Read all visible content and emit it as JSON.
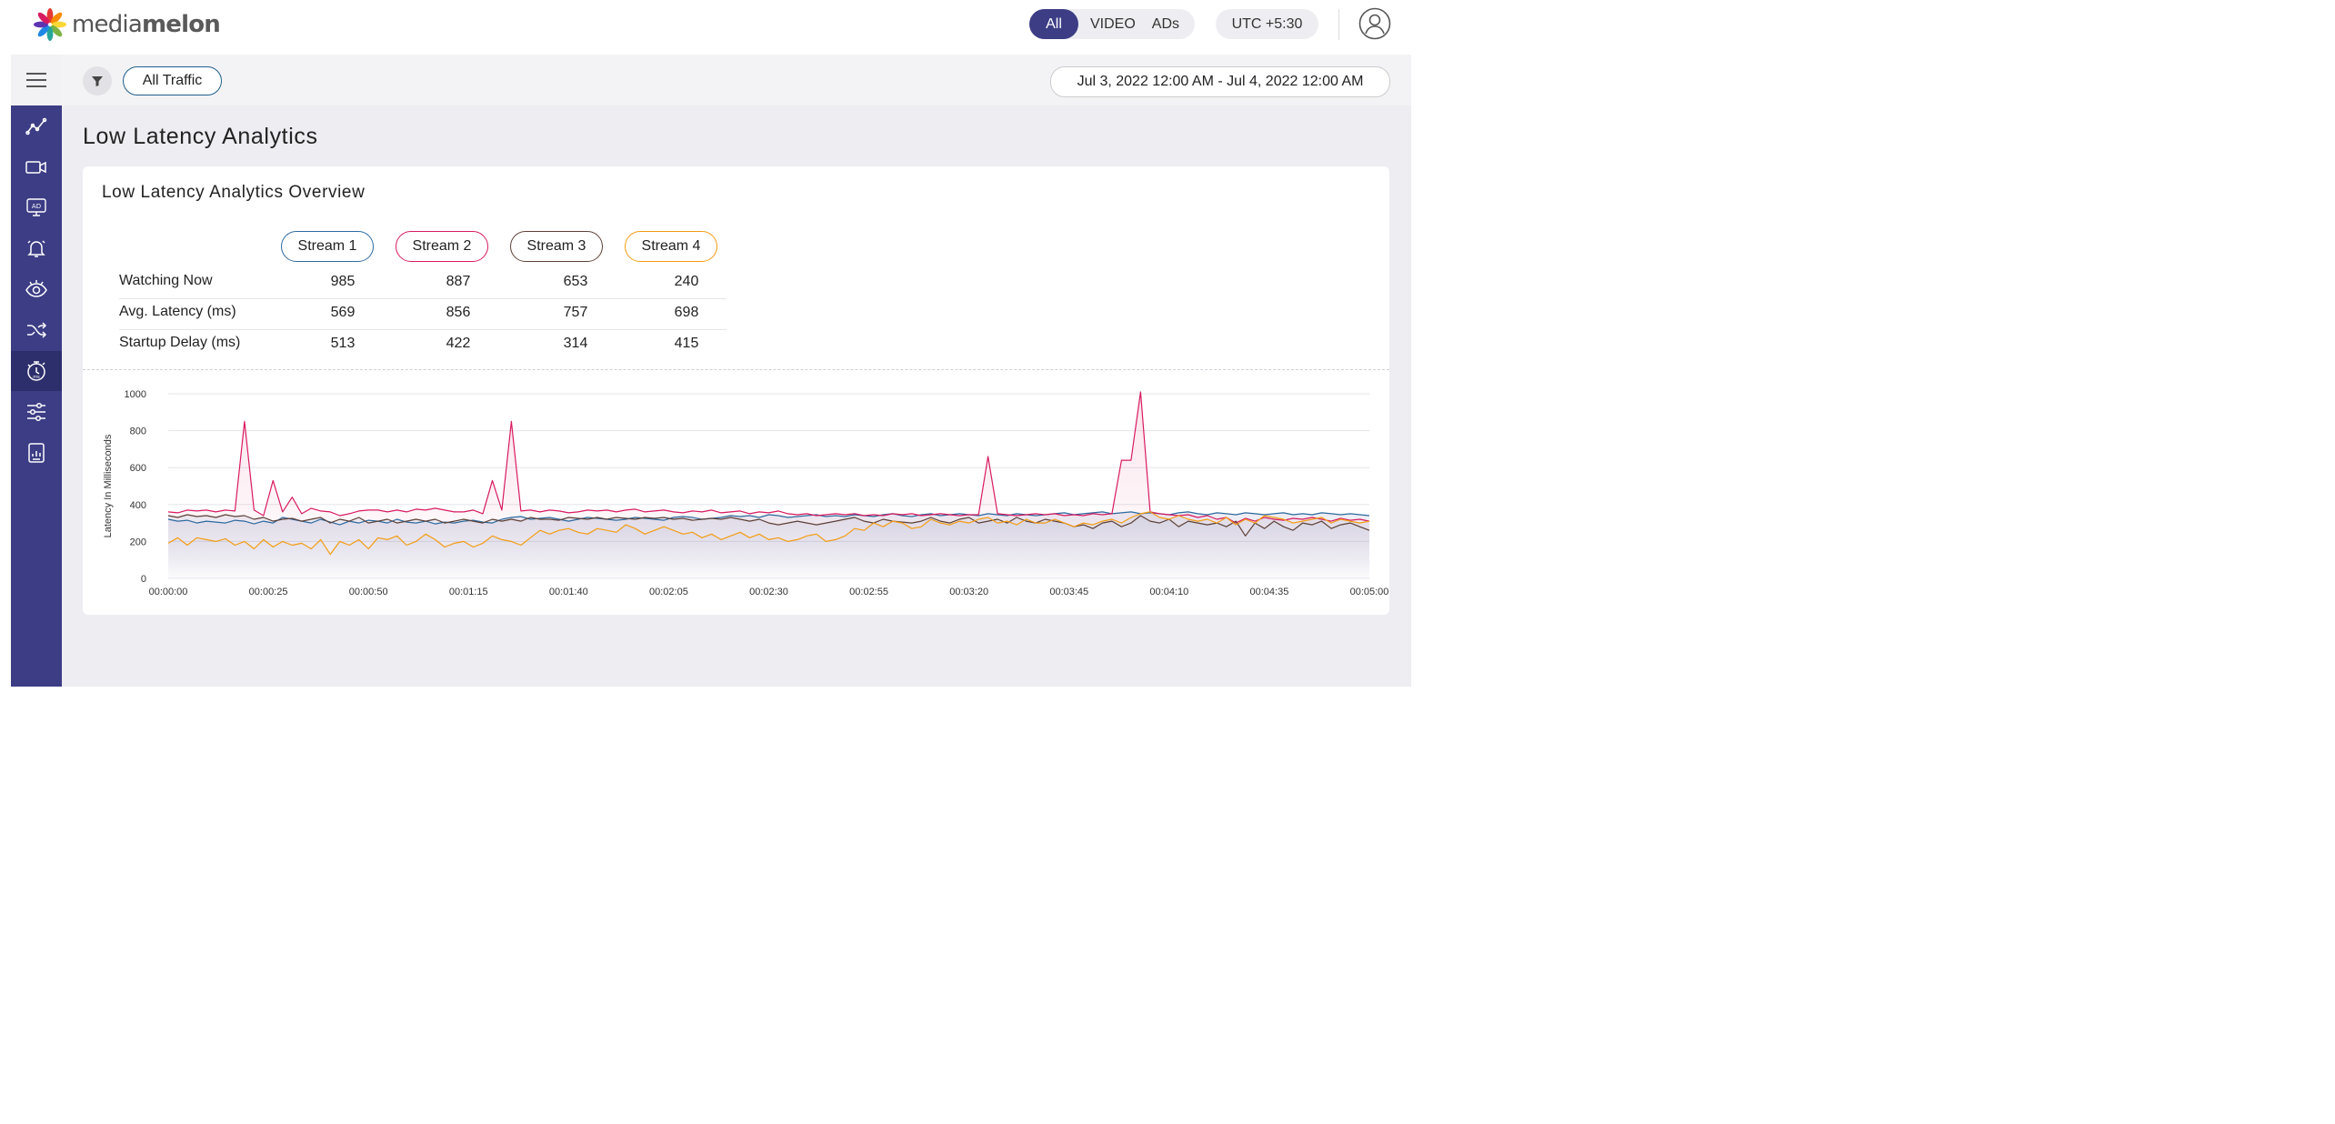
{
  "brand": {
    "logo_text_left": "media",
    "logo_text_right": "melon"
  },
  "header": {
    "segments": [
      "All",
      "VIDEO",
      "ADs"
    ],
    "active_segment": "All",
    "timezone": "UTC +5:30"
  },
  "sidebar": {
    "items": [
      "trend-chart-icon",
      "video-camera-icon",
      "ad-icon",
      "alert-bell-icon",
      "eye-icon",
      "shuffle-icon",
      "stopwatch-icon",
      "sliders-icon",
      "report-icon"
    ],
    "selected": "stopwatch-icon",
    "color": "#3c3d85"
  },
  "filterbar": {
    "filter_chip": "All Traffic",
    "date_range": "Jul 3, 2022 12:00 AM - Jul 4, 2022 12:00 AM"
  },
  "page": {
    "title": "Low Latency Analytics"
  },
  "overview": {
    "title": "Low Latency Analytics Overview",
    "streams": [
      {
        "name": "Stream 1",
        "color": "#2d6a9f"
      },
      {
        "name": "Stream 2",
        "color": "#d81b60"
      },
      {
        "name": "Stream 3",
        "color": "#5d4037"
      },
      {
        "name": "Stream 4",
        "color": "#f39c12"
      }
    ],
    "rows": [
      {
        "label": "Watching Now",
        "values": [
          "985",
          "887",
          "653",
          "240"
        ]
      },
      {
        "label": "Avg. Latency (ms)",
        "values": [
          "569",
          "856",
          "757",
          "698"
        ]
      },
      {
        "label": "Startup Delay (ms)",
        "values": [
          "513",
          "422",
          "314",
          "415"
        ]
      }
    ]
  },
  "chart_data": {
    "type": "line",
    "ylabel": "Latency In Milliseconds",
    "ylim": [
      0,
      1000
    ],
    "yticks": [
      "0",
      "200",
      "400",
      "600",
      "800",
      "1000"
    ],
    "xticks": [
      "00:00:00",
      "00:00:25",
      "00:00:50",
      "00:01:15",
      "00:01:40",
      "00:02:05",
      "00:02:30",
      "00:02:55",
      "00:03:20",
      "00:03:45",
      "00:04:10",
      "00:04:35",
      "00:05:00"
    ],
    "grid": true,
    "x_seconds_step": 2.5,
    "series": [
      {
        "name": "Stream 1",
        "color": "#2d6a9f",
        "values": [
          320,
          310,
          315,
          300,
          310,
          305,
          300,
          315,
          310,
          295,
          310,
          300,
          330,
          320,
          310,
          300,
          320,
          305,
          290,
          310,
          300,
          315,
          310,
          300,
          320,
          305,
          300,
          310,
          295,
          305,
          300,
          310,
          315,
          305,
          300,
          320,
          330,
          335,
          320,
          325,
          330,
          320,
          310,
          320,
          330,
          325,
          320,
          315,
          320,
          330,
          325,
          320,
          315,
          330,
          335,
          330,
          320,
          325,
          330,
          340,
          335,
          340,
          330,
          345,
          340,
          330,
          335,
          340,
          345,
          335,
          340,
          335,
          345,
          340,
          335,
          345,
          350,
          340,
          335,
          345,
          350,
          340,
          345,
          350,
          345,
          340,
          350,
          345,
          340,
          350,
          345,
          340,
          345,
          350,
          355,
          345,
          350,
          355,
          360,
          350,
          355,
          360,
          350,
          355,
          350,
          345,
          355,
          360,
          350,
          345,
          355,
          350,
          345,
          355,
          350,
          345,
          350,
          355,
          345,
          350,
          345,
          355,
          350,
          345,
          350,
          345,
          340
        ]
      },
      {
        "name": "Stream 2",
        "color": "#d81b60",
        "values": [
          360,
          355,
          370,
          365,
          370,
          360,
          370,
          365,
          850,
          370,
          340,
          530,
          360,
          440,
          350,
          380,
          365,
          360,
          340,
          350,
          365,
          370,
          370,
          360,
          370,
          360,
          375,
          370,
          380,
          370,
          360,
          360,
          370,
          350,
          530,
          370,
          850,
          365,
          370,
          360,
          370,
          365,
          355,
          360,
          370,
          365,
          370,
          360,
          370,
          375,
          360,
          365,
          370,
          360,
          355,
          365,
          360,
          370,
          355,
          360,
          365,
          350,
          360,
          355,
          365,
          350,
          345,
          350,
          340,
          345,
          350,
          345,
          350,
          340,
          345,
          340,
          350,
          345,
          350,
          340,
          345,
          350,
          345,
          340,
          345,
          345,
          660,
          350,
          345,
          340,
          345,
          350,
          345,
          350,
          340,
          345,
          340,
          350,
          345,
          350,
          640,
          640,
          1010,
          360,
          350,
          345,
          340,
          345,
          330,
          340,
          320,
          330,
          300,
          325,
          310,
          330,
          320,
          315,
          325,
          320,
          330,
          320,
          310,
          325,
          315,
          320,
          310
        ]
      },
      {
        "name": "Stream 3",
        "color": "#5d4037",
        "values": [
          340,
          330,
          345,
          335,
          340,
          330,
          345,
          335,
          340,
          320,
          330,
          310,
          320,
          325,
          310,
          320,
          330,
          300,
          320,
          310,
          330,
          300,
          310,
          320,
          300,
          310,
          320,
          310,
          320,
          300,
          310,
          320,
          310,
          300,
          320,
          310,
          320,
          310,
          330,
          320,
          320,
          315,
          330,
          325,
          320,
          330,
          320,
          330,
          325,
          320,
          330,
          325,
          330,
          320,
          325,
          315,
          320,
          325,
          320,
          330,
          320,
          310,
          320,
          300,
          290,
          300,
          310,
          300,
          290,
          300,
          310,
          320,
          330,
          310,
          300,
          320,
          310,
          305,
          300,
          310,
          330,
          310,
          300,
          320,
          330,
          300,
          310,
          320,
          300,
          330,
          310,
          300,
          320,
          310,
          300,
          280,
          290,
          270,
          300,
          310,
          280,
          300,
          340,
          310,
          300,
          320,
          280,
          310,
          300,
          290,
          300,
          280,
          310,
          230,
          300,
          270,
          310,
          280,
          260,
          300,
          290,
          310,
          270,
          290,
          300,
          280,
          260
        ]
      },
      {
        "name": "Stream 4",
        "color": "#f39c12",
        "values": [
          190,
          220,
          180,
          220,
          210,
          200,
          215,
          180,
          200,
          160,
          210,
          170,
          200,
          180,
          190,
          160,
          210,
          130,
          200,
          180,
          210,
          160,
          220,
          210,
          230,
          180,
          200,
          240,
          210,
          170,
          190,
          200,
          170,
          190,
          230,
          210,
          200,
          180,
          220,
          260,
          240,
          260,
          270,
          250,
          240,
          270,
          260,
          250,
          290,
          270,
          240,
          260,
          280,
          260,
          240,
          250,
          220,
          240,
          210,
          230,
          250,
          220,
          240,
          210,
          220,
          200,
          210,
          230,
          240,
          200,
          210,
          230,
          270,
          260,
          300,
          280,
          310,
          300,
          270,
          280,
          320,
          300,
          290,
          310,
          300,
          320,
          330,
          300,
          310,
          290,
          320,
          300,
          300,
          320,
          300,
          280,
          300,
          290,
          310,
          320,
          300,
          330,
          350,
          360,
          330,
          320,
          340,
          320,
          310,
          320,
          300,
          330,
          290,
          320,
          300,
          340,
          330,
          320,
          300,
          310,
          320,
          330,
          300,
          320,
          310,
          300,
          310
        ]
      }
    ]
  }
}
